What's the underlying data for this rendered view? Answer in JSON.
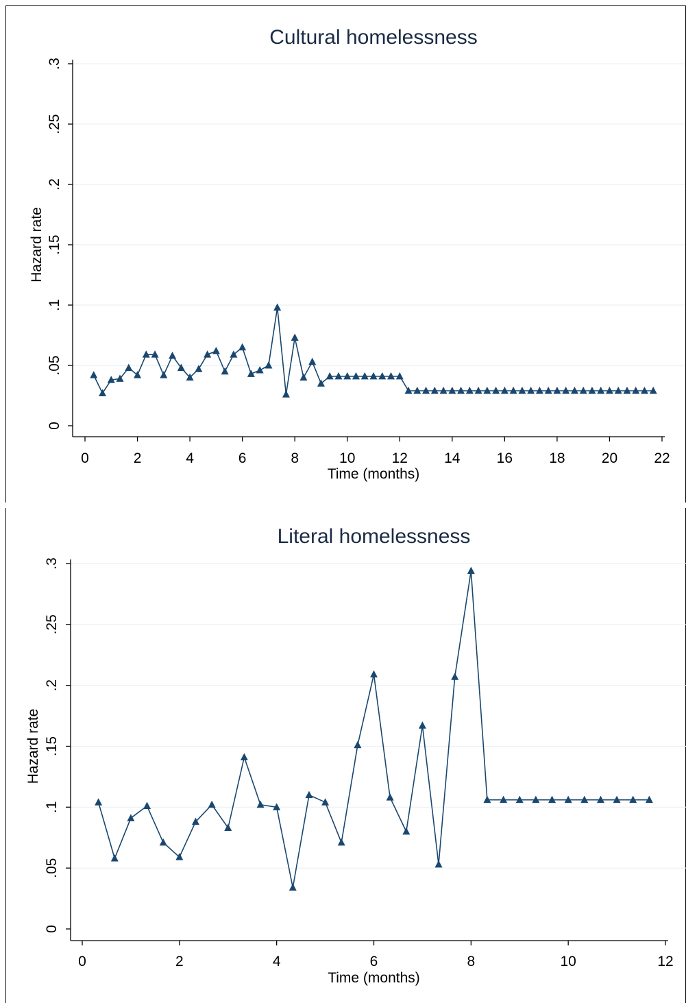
{
  "charts": [
    {
      "chart_data": {
        "type": "line",
        "title": "Cultural homelessness",
        "xlabel": "Time (months)",
        "ylabel": "Hazard rate",
        "xlim": [
          0,
          22
        ],
        "ylim": [
          0,
          0.3
        ],
        "x_ticks": [
          "0",
          "2",
          "4",
          "6",
          "8",
          "10",
          "12",
          "14",
          "16",
          "18",
          "20",
          "22"
        ],
        "y_ticks": [
          "0",
          ".05",
          ".1",
          ".15",
          ".2",
          ".25",
          ".3"
        ],
        "x_tick_values": [
          0,
          2,
          4,
          6,
          8,
          10,
          12,
          14,
          16,
          18,
          20,
          22
        ],
        "y_tick_values": [
          0,
          0.05,
          0.1,
          0.15,
          0.2,
          0.25,
          0.3
        ],
        "grid": true,
        "marker": "triangle",
        "color": "#1a476f",
        "x": [
          0.333,
          0.667,
          1,
          1.333,
          1.667,
          2,
          2.333,
          2.667,
          3,
          3.333,
          3.667,
          4,
          4.333,
          4.667,
          5,
          5.333,
          5.667,
          6,
          6.333,
          6.667,
          7,
          7.333,
          7.667,
          8,
          8.333,
          8.667,
          9,
          9.333,
          9.667,
          10,
          10.333,
          10.667,
          11,
          11.333,
          11.667,
          12,
          12.333,
          12.667,
          13,
          13.333,
          13.667,
          14,
          14.333,
          14.667,
          15,
          15.333,
          15.667,
          16,
          16.333,
          16.667,
          17,
          17.333,
          17.667,
          18,
          18.333,
          18.667,
          19,
          19.333,
          19.667,
          20,
          20.333,
          20.667,
          21,
          21.333,
          21.667
        ],
        "y": [
          0.042,
          0.027,
          0.038,
          0.039,
          0.048,
          0.042,
          0.059,
          0.059,
          0.042,
          0.058,
          0.048,
          0.04,
          0.047,
          0.059,
          0.062,
          0.045,
          0.059,
          0.065,
          0.043,
          0.046,
          0.05,
          0.098,
          0.026,
          0.073,
          0.04,
          0.053,
          0.035,
          0.041,
          0.041,
          0.041,
          0.041,
          0.041,
          0.041,
          0.041,
          0.041,
          0.041,
          0.029,
          0.029,
          0.029,
          0.029,
          0.029,
          0.029,
          0.029,
          0.029,
          0.029,
          0.029,
          0.029,
          0.029,
          0.029,
          0.029,
          0.029,
          0.029,
          0.029,
          0.029,
          0.029,
          0.029,
          0.029,
          0.029,
          0.029,
          0.029,
          0.029,
          0.029,
          0.029,
          0.029,
          0.029
        ]
      }
    },
    {
      "chart_data": {
        "type": "line",
        "title": "Literal homelessness",
        "xlabel": "Time (months)",
        "ylabel": "Hazard rate",
        "xlim": [
          0,
          12
        ],
        "ylim": [
          0,
          0.3
        ],
        "x_ticks": [
          "0",
          "2",
          "4",
          "6",
          "8",
          "10",
          "12"
        ],
        "y_ticks": [
          "0",
          ".05",
          ".1",
          ".15",
          ".2",
          ".25",
          ".3"
        ],
        "x_tick_values": [
          0,
          2,
          4,
          6,
          8,
          10,
          12
        ],
        "y_tick_values": [
          0,
          0.05,
          0.1,
          0.15,
          0.2,
          0.25,
          0.3
        ],
        "grid": true,
        "marker": "triangle",
        "color": "#1a476f",
        "x": [
          0.333,
          0.667,
          1,
          1.333,
          1.667,
          2,
          2.333,
          2.667,
          3,
          3.333,
          3.667,
          4,
          4.333,
          4.667,
          5,
          5.333,
          5.667,
          6,
          6.333,
          6.667,
          7,
          7.333,
          7.667,
          8,
          8.333,
          8.667,
          9,
          9.333,
          9.667,
          10,
          10.333,
          10.667,
          11,
          11.333,
          11.667
        ],
        "y": [
          0.104,
          0.058,
          0.091,
          0.101,
          0.071,
          0.059,
          0.088,
          0.102,
          0.083,
          0.141,
          0.102,
          0.1,
          0.034,
          0.11,
          0.104,
          0.071,
          0.151,
          0.209,
          0.108,
          0.08,
          0.167,
          0.053,
          0.207,
          0.294,
          0.106,
          0.106,
          0.106,
          0.106,
          0.106,
          0.106,
          0.106,
          0.106,
          0.106,
          0.106,
          0.106
        ]
      }
    }
  ]
}
